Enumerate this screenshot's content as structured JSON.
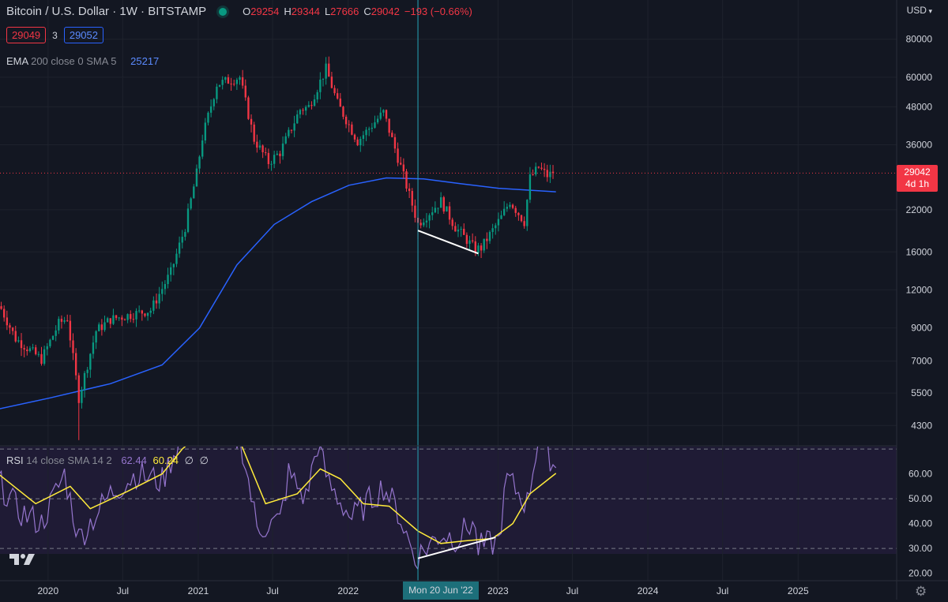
{
  "header": {
    "title": "Bitcoin / U.S. Dollar · 1W · BITSTAMP",
    "ohlc": [
      {
        "key": "O",
        "value": "29254"
      },
      {
        "key": "H",
        "value": "29344"
      },
      {
        "key": "L",
        "value": "27666"
      },
      {
        "key": "C",
        "value": "29042"
      }
    ],
    "change": "−193 (−0.66%)",
    "sell_price": "29049",
    "spread": "3",
    "buy_price": "29052",
    "currency": "USD"
  },
  "ema_legend": {
    "name": "EMA",
    "params": "200 close 0 SMA 5",
    "value": "25217"
  },
  "rsi_legend": {
    "name": "RSI",
    "params": "14 close SMA 14 2",
    "rsi_value": "62.44",
    "ma_value": "60.24",
    "extra1": "∅",
    "extra2": "∅"
  },
  "last_price_label": {
    "price": "29042",
    "countdown": "4d 1h"
  },
  "crosshair_label": "Mon 20 Jun '22",
  "colors": {
    "bull": "#089981",
    "bear": "#f23645",
    "ema": "#2962ff",
    "rsi": "#9575cd",
    "rsi_ma": "#ffeb3b",
    "background": "#131722",
    "crosshair": "#26a6b8"
  },
  "icons": {
    "logo": "tradingview-logo-icon",
    "settings": "gear-icon",
    "status": "market-status-dot-icon"
  },
  "chart_data": [
    {
      "type": "candlestick",
      "title": "Bitcoin / U.S. Dollar · 1W · BITSTAMP",
      "yscale": "log",
      "ylim": [
        3800,
        90000
      ],
      "y_ticks": [
        4300,
        5500,
        7000,
        9000,
        12000,
        16000,
        22000,
        29042,
        36000,
        48000,
        60000,
        80000
      ],
      "x_ticks": [
        "2020",
        "Jul",
        "2021",
        "Jul",
        "2022",
        "Jun '22",
        "2023",
        "Jul",
        "2024",
        "Jul",
        "2025"
      ],
      "x_tick_dates": [
        "2020-01-01",
        "2020-07-01",
        "2021-01-01",
        "2021-07-01",
        "2022-01-01",
        "2022-06-20",
        "2023-01-01",
        "2023-07-01",
        "2024-01-01",
        "2024-07-01",
        "2025-01-01"
      ],
      "xlim": [
        "2019-09-06",
        "2025-08-29"
      ],
      "anchors": {
        "dates": [
          "2019-09-09",
          "2019-10-14",
          "2019-12-16",
          "2020-01-27",
          "2020-02-17",
          "2020-03-16",
          "2020-04-27",
          "2020-06-01",
          "2020-09-07",
          "2020-10-26",
          "2020-11-30",
          "2020-12-28",
          "2021-01-11",
          "2021-02-15",
          "2021-04-12",
          "2021-05-17",
          "2021-06-21",
          "2021-07-19",
          "2021-09-06",
          "2021-09-27",
          "2021-11-08",
          "2021-12-06",
          "2022-01-24",
          "2022-03-28",
          "2022-05-09",
          "2022-06-20",
          "2022-08-15",
          "2022-09-19",
          "2022-11-07",
          "2022-11-21",
          "2023-01-09",
          "2023-01-30",
          "2023-03-06",
          "2023-03-20",
          "2023-04-10",
          "2023-05-01",
          "2023-05-15"
        ],
        "closes": [
          10400,
          8300,
          7100,
          9300,
          9700,
          5300,
          8800,
          9600,
          10300,
          13700,
          19300,
          29000,
          38000,
          57000,
          60000,
          37500,
          31500,
          34000,
          47000,
          48000,
          64000,
          49300,
          37000,
          46000,
          30500,
          19800,
          23500,
          19300,
          16300,
          16500,
          20800,
          23500,
          20100,
          28000,
          30300,
          28500,
          29042
        ]
      },
      "lows": [
        {
          "date": "2020-03-16",
          "price": 3850
        },
        {
          "date": "2022-06-20",
          "price": 17600
        },
        {
          "date": "2022-11-07",
          "price": 15500
        }
      ],
      "series": [
        {
          "name": "EMA 200 close 0 SMA 5",
          "points": [
            [
              "2019-09-02",
              4870
            ],
            [
              "2020-01-06",
              5300
            ],
            [
              "2020-06-01",
              5900
            ],
            [
              "2020-10-05",
              6800
            ],
            [
              "2021-01-04",
              9000
            ],
            [
              "2021-04-05",
              14500
            ],
            [
              "2021-07-05",
              19700
            ],
            [
              "2021-10-04",
              23400
            ],
            [
              "2022-01-03",
              26500
            ],
            [
              "2022-04-04",
              28000
            ],
            [
              "2022-07-04",
              27800
            ],
            [
              "2022-10-03",
              26800
            ],
            [
              "2023-01-02",
              25900
            ],
            [
              "2023-05-22",
              25217
            ]
          ]
        }
      ],
      "last_price": 29042,
      "crosshair_date": "2022-06-20",
      "trendline": {
        "from": [
          "2022-06-20",
          18800
        ],
        "to": [
          "2022-11-14",
          15800
        ]
      }
    },
    {
      "type": "line",
      "title": "RSI 14 close SMA 14 2",
      "ylim": [
        17,
        71
      ],
      "y_ticks": [
        20.0,
        30.0,
        40.0,
        50.0,
        60.0
      ],
      "bands": [
        30,
        50,
        70
      ],
      "series": [
        {
          "name": "RSI",
          "points": [
            [
              "2019-09-02",
              57
            ],
            [
              "2019-10-21",
              45
            ],
            [
              "2019-12-16",
              40
            ],
            [
              "2020-02-10",
              60
            ],
            [
              "2020-03-16",
              34
            ],
            [
              "2020-06-01",
              52
            ],
            [
              "2020-08-03",
              60
            ],
            [
              "2020-10-05",
              57
            ],
            [
              "2020-11-16",
              74
            ],
            [
              "2021-01-11",
              88
            ],
            [
              "2021-03-15",
              80
            ],
            [
              "2021-04-19",
              70
            ],
            [
              "2021-05-24",
              38
            ],
            [
              "2021-07-19",
              41
            ],
            [
              "2021-08-09",
              60
            ],
            [
              "2021-09-20",
              50
            ],
            [
              "2021-10-18",
              72
            ],
            [
              "2021-11-15",
              56
            ],
            [
              "2022-01-10",
              42
            ],
            [
              "2022-03-28",
              55
            ],
            [
              "2022-05-02",
              45
            ],
            [
              "2022-06-13",
              26
            ],
            [
              "2022-08-15",
              36
            ],
            [
              "2022-09-26",
              34
            ],
            [
              "2022-10-31",
              41
            ],
            [
              "2022-11-14",
              30
            ],
            [
              "2023-01-02",
              33
            ],
            [
              "2023-01-23",
              58
            ],
            [
              "2023-03-13",
              48
            ],
            [
              "2023-04-10",
              76
            ],
            [
              "2023-05-22",
              62.44
            ]
          ]
        },
        {
          "name": "RSI-based MA",
          "points": [
            [
              "2019-09-02",
              60
            ],
            [
              "2019-12-02",
              48
            ],
            [
              "2020-02-24",
              55
            ],
            [
              "2020-04-13",
              46
            ],
            [
              "2020-07-13",
              53
            ],
            [
              "2020-10-05",
              60
            ],
            [
              "2020-11-23",
              70
            ],
            [
              "2021-01-18",
              78
            ],
            [
              "2021-04-05",
              76
            ],
            [
              "2021-06-14",
              48
            ],
            [
              "2021-08-30",
              52
            ],
            [
              "2021-10-25",
              62
            ],
            [
              "2021-12-13",
              58
            ],
            [
              "2022-02-07",
              48
            ],
            [
              "2022-04-11",
              47
            ],
            [
              "2022-06-20",
              37
            ],
            [
              "2022-08-15",
              32
            ],
            [
              "2022-10-10",
              33
            ],
            [
              "2022-12-19",
              34
            ],
            [
              "2023-02-06",
              40
            ],
            [
              "2023-03-20",
              52
            ],
            [
              "2023-05-22",
              60.24
            ]
          ]
        }
      ],
      "trendline": {
        "from": [
          "2022-06-20",
          26
        ],
        "to": [
          "2022-12-26",
          34.5
        ]
      }
    }
  ]
}
